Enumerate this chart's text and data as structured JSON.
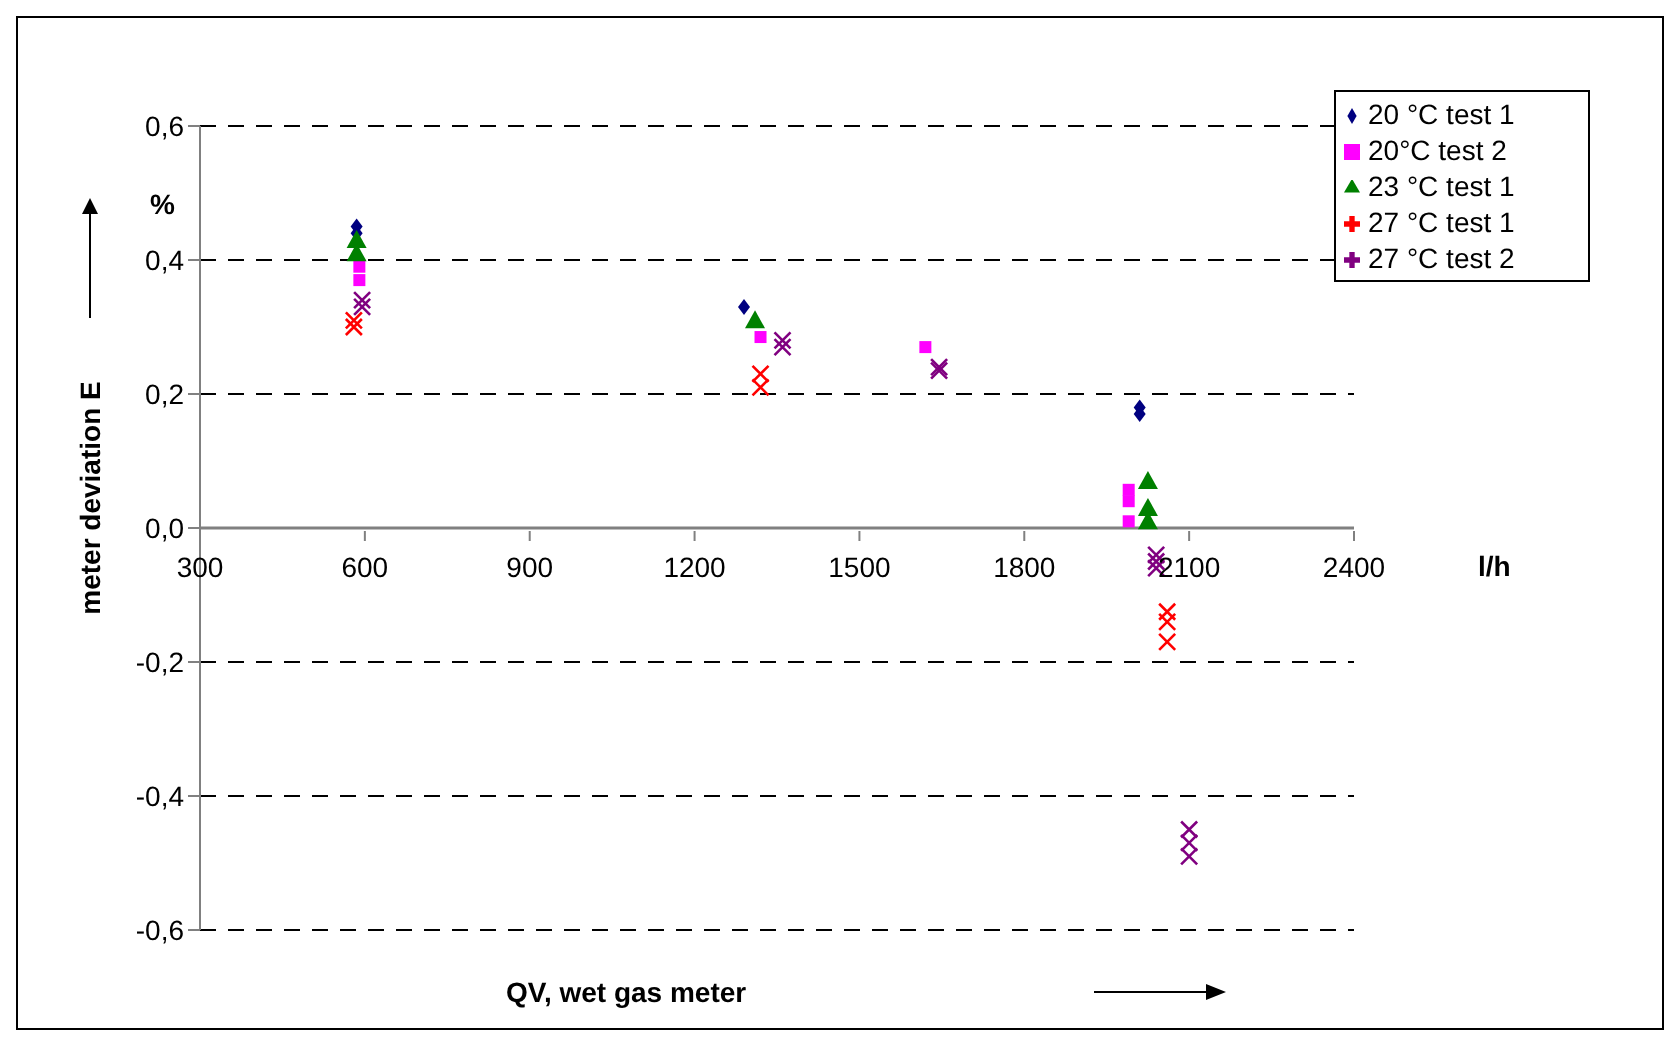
{
  "chart_data": {
    "type": "scatter",
    "xlabel": "QV, wet gas meter",
    "ylabel": "meter deviation E",
    "annotations": [
      "%",
      "l/h"
    ],
    "xlim": [
      300,
      2400
    ],
    "xticks": [
      300,
      600,
      900,
      1200,
      1500,
      1800,
      2100,
      2400
    ],
    "ylim": [
      -0.6,
      0.6
    ],
    "yticks": [
      {
        "value": -0.6,
        "label": "-0,6"
      },
      {
        "value": -0.4,
        "label": "-0,4"
      },
      {
        "value": -0.2,
        "label": "-0,2"
      },
      {
        "value": 0,
        "label": "0,0"
      },
      {
        "value": 0.2,
        "label": "0,2"
      },
      {
        "value": 0.4,
        "label": "0,4"
      },
      {
        "value": 0.6,
        "label": "0,6"
      }
    ],
    "grid": "y",
    "legend": "top right",
    "series": [
      {
        "name": "20 °C test 1",
        "color": "#000080",
        "marker": "diamond",
        "x": [
          585,
          585,
          1290,
          2010,
          2010
        ],
        "values": [
          0.45,
          0.44,
          0.33,
          0.18,
          0.17
        ]
      },
      {
        "name": "20°C test 2",
        "color": "#ff00ff",
        "marker": "square",
        "x": [
          590,
          590,
          1320,
          1620,
          1990,
          1990,
          1990
        ],
        "values": [
          0.39,
          0.37,
          0.285,
          0.27,
          0.057,
          0.04,
          0.01
        ]
      },
      {
        "name": "23 °C test 1",
        "color": "#008000",
        "marker": "triangle",
        "x": [
          585,
          585,
          1310,
          2025,
          2025,
          2025
        ],
        "values": [
          0.43,
          0.41,
          0.31,
          0.07,
          0.03,
          0.01
        ]
      },
      {
        "name": "27 °C test 1",
        "color": "#ff0000",
        "marker": "cross",
        "x": [
          580,
          580,
          1320,
          1320,
          2060,
          2060,
          2060
        ],
        "values": [
          0.31,
          0.3,
          0.23,
          0.21,
          -0.125,
          -0.14,
          -0.17
        ]
      },
      {
        "name": "27 °C test 2",
        "color": "#800080",
        "marker": "cross",
        "x": [
          595,
          595,
          1360,
          1360,
          1645,
          1645,
          2040,
          2040,
          2040,
          2100,
          2100,
          2100
        ],
        "values": [
          0.34,
          0.33,
          0.28,
          0.27,
          0.24,
          0.235,
          -0.04,
          -0.05,
          -0.06,
          -0.45,
          -0.47,
          -0.49
        ]
      }
    ]
  }
}
